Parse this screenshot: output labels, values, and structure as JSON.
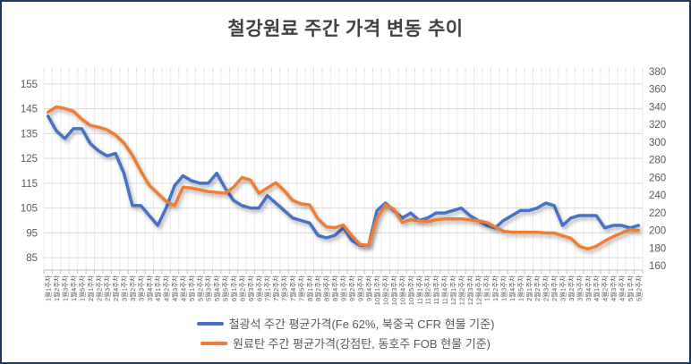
{
  "title": "철강원료 주간 가격 변동 추이",
  "chart_data": {
    "type": "line",
    "grid": true,
    "legend_position": "bottom",
    "categories": [
      "1월1주차",
      "1월2주차",
      "1월3주차",
      "1월4주차",
      "1월5주차",
      "2월1주차",
      "2월2주차",
      "2월3주차",
      "2월4주차",
      "3월1주차",
      "3월2주차",
      "3월3주차",
      "3월4주차",
      "4월1주차",
      "4월2주차",
      "4월3주차",
      "4월4주차",
      "5월1주차",
      "5월2주차",
      "5월3주차",
      "5월4주차",
      "5월5주차",
      "6월1주차",
      "6월2주차",
      "6월3주차",
      "6월4주차",
      "7월1주차",
      "7월2주차",
      "7월3주차",
      "7월4주차",
      "7월5주차",
      "8월1주차",
      "8월2주차",
      "8월3주차",
      "8월4주차",
      "9월1주차",
      "9월2주차",
      "9월3주차",
      "9월4주차",
      "10월1주차",
      "10월2주차",
      "10월3주차",
      "10월4주차",
      "10월5주차",
      "11월1주차",
      "11월2주차",
      "11월3주차",
      "11월4주차",
      "12월1주차",
      "12월2주차",
      "12월3주차",
      "12월4주차",
      "1월1주차",
      "1월2주차",
      "1월3주차",
      "1월4주차",
      "1월5주차",
      "2월1주차",
      "2월2주차",
      "2월3주차",
      "2월4주차",
      "3월1주차",
      "3월2주차",
      "3월3주차",
      "3월4주차",
      "4월1주차",
      "4월2주차",
      "4월3주차",
      "4월4주차",
      "5월1주차",
      "5월2주차"
    ],
    "series": [
      {
        "name": "철광석 주간 평균가격(Fe 62%, 북중국 CFR 현물 기준)",
        "axis": "left",
        "color": "#4472C4",
        "values": [
          142,
          136,
          133,
          137,
          137,
          131,
          128,
          126,
          127,
          119,
          106,
          106,
          102,
          98,
          105,
          114,
          118,
          116,
          115,
          115,
          119,
          113,
          108,
          106,
          105,
          105,
          110,
          107,
          104,
          101,
          100,
          99,
          94,
          93,
          94,
          97,
          92,
          90,
          90,
          104,
          107,
          104,
          101,
          103,
          100,
          101,
          103,
          103,
          104,
          105,
          102,
          100,
          98,
          97,
          100,
          102,
          104,
          104,
          105,
          107,
          106,
          98,
          101,
          102,
          102,
          102,
          97,
          98,
          98,
          97,
          98
        ]
      },
      {
        "name": "원료탄 주간 평균가격(강점탄, 동호주 FOB 현물 기준)",
        "axis": "right",
        "color": "#ED7D31",
        "values": [
          334,
          340,
          338,
          335,
          326,
          319,
          317,
          314,
          308,
          299,
          285,
          267,
          251,
          242,
          233,
          228,
          249,
          248,
          246,
          244,
          243,
          242,
          249,
          260,
          257,
          242,
          248,
          254,
          245,
          234,
          230,
          229,
          213,
          204,
          203,
          206,
          194,
          184,
          183,
          214,
          229,
          224,
          209,
          212,
          211,
          210,
          212,
          213,
          213,
          213,
          212,
          211,
          209,
          204,
          199,
          198,
          198,
          198,
          198,
          197,
          197,
          194,
          191,
          182,
          179,
          182,
          188,
          193,
          197,
          201,
          200
        ]
      }
    ],
    "left_axis": {
      "ticks": [
        85,
        95,
        105,
        115,
        125,
        135,
        145,
        155
      ],
      "min": 80,
      "max": 160
    },
    "right_axis": {
      "ticks": [
        160,
        180,
        200,
        220,
        240,
        260,
        280,
        300,
        320,
        340,
        360,
        380
      ],
      "min": 155,
      "max": 380
    },
    "axis_text_color": "#595959",
    "gridline_color": "#D9D9D9",
    "minor_grid_color": "#EBEBEB",
    "axis_line_color": "#BFBFBF"
  }
}
